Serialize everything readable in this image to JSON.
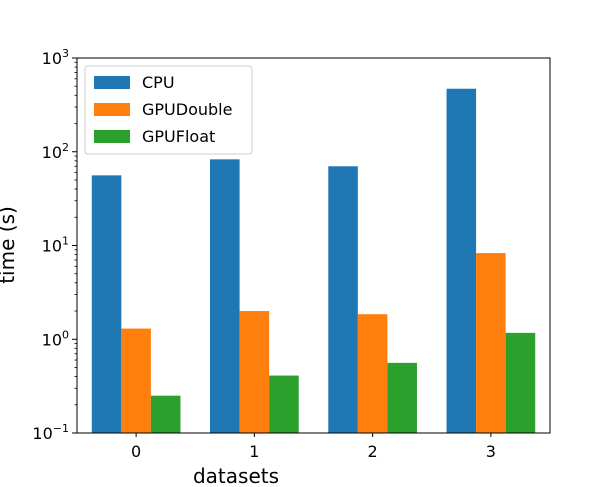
{
  "chart_data": {
    "type": "bar",
    "xlabel": "datasets",
    "ylabel": "time (s)",
    "yscale": "log",
    "ylim": [
      0.1,
      1000
    ],
    "categories": [
      "0",
      "1",
      "2",
      "3"
    ],
    "series": [
      {
        "name": "CPU",
        "color": "#1f77b4",
        "values": [
          56,
          83,
          70,
          470
        ]
      },
      {
        "name": "GPUDouble",
        "color": "#ff7f0e",
        "values": [
          1.3,
          2.0,
          1.85,
          8.3
        ]
      },
      {
        "name": "GPUFloat",
        "color": "#2ca02c",
        "values": [
          0.25,
          0.41,
          0.56,
          1.17
        ]
      }
    ],
    "y_ticks": [
      {
        "base": "10",
        "exp": "−1"
      },
      {
        "base": "10",
        "exp": "0"
      },
      {
        "base": "10",
        "exp": "1"
      },
      {
        "base": "10",
        "exp": "2"
      },
      {
        "base": "10",
        "exp": "3"
      }
    ],
    "legend_position": "top-left",
    "grid": false
  }
}
